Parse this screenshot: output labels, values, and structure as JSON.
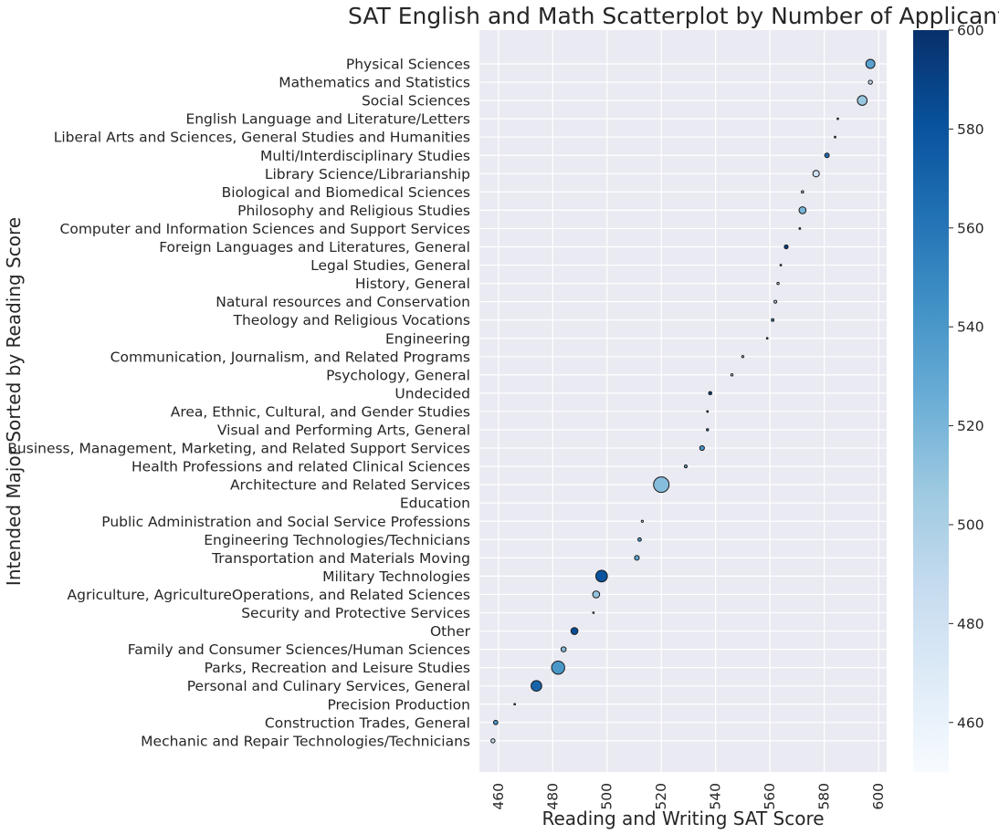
{
  "chart_data": {
    "type": "scatter",
    "title": "SAT English and Math Scatterplot by Number of Applicants",
    "xlabel": "Reading and Writing SAT Score",
    "ylabel": "Intended Major Sorted by Reading Score",
    "xlim": [
      453,
      603
    ],
    "xticks": [
      460,
      480,
      500,
      520,
      540,
      560,
      580,
      600
    ],
    "grid": true,
    "size_encodes": "number of applicants",
    "color_encodes": "math SAT score",
    "colorbar": {
      "min": 450,
      "max": 600,
      "ticks": [
        460,
        480,
        500,
        520,
        540,
        560,
        580,
        600
      ],
      "colormap": "Blues"
    },
    "points": [
      {
        "label": "Physical Sciences",
        "x": 597,
        "color_value": 533,
        "size": 1100
      },
      {
        "label": "Mathematics and Statistics",
        "x": 597,
        "color_value": 490,
        "size": 220
      },
      {
        "label": "Social Sciences",
        "x": 594,
        "color_value": 508,
        "size": 1250
      },
      {
        "label": "English Language and Literature/Letters",
        "x": 585,
        "color_value": 528,
        "size": 12
      },
      {
        "label": "Liberal Arts and Sciences, General Studies and Humanities",
        "x": 584,
        "color_value": 538,
        "size": 16
      },
      {
        "label": "Multi/Interdisciplinary Studies",
        "x": 581,
        "color_value": 565,
        "size": 280
      },
      {
        "label": "Library Science/Librarianship",
        "x": 577,
        "color_value": 480,
        "size": 560
      },
      {
        "label": "Biological and Biomedical Sciences",
        "x": 572,
        "color_value": 495,
        "size": 75
      },
      {
        "label": "Philosophy and Religious Studies",
        "x": 572,
        "color_value": 520,
        "size": 650
      },
      {
        "label": "Computer and Information Sciences and Support Services",
        "x": 571,
        "color_value": 545,
        "size": 3
      },
      {
        "label": "Foreign Languages and Literatures, General",
        "x": 566,
        "color_value": 593,
        "size": 200
      },
      {
        "label": "Legal Studies, General",
        "x": 564,
        "color_value": 548,
        "size": 30
      },
      {
        "label": "History, General",
        "x": 563,
        "color_value": 470,
        "size": 70
      },
      {
        "label": "Natural resources and Conservation",
        "x": 562,
        "color_value": 488,
        "size": 110
      },
      {
        "label": "Theology and Religious Vocations",
        "x": 561,
        "color_value": 545,
        "size": 95
      },
      {
        "label": "Engineering",
        "x": 559,
        "color_value": 565,
        "size": 30
      },
      {
        "label": "Communication, Journalism, and Related Programs",
        "x": 550,
        "color_value": 485,
        "size": 65
      },
      {
        "label": "Psychology, General",
        "x": 546,
        "color_value": 470,
        "size": 65
      },
      {
        "label": "Undecided",
        "x": 538,
        "color_value": 592,
        "size": 140
      },
      {
        "label": "Area, Ethnic, Cultural, and Gender Studies",
        "x": 537,
        "color_value": 560,
        "size": 3
      },
      {
        "label": "Visual and Performing Arts, General",
        "x": 537,
        "color_value": 552,
        "size": 65
      },
      {
        "label": "Business, Management, Marketing, and Related Support Services",
        "x": 535,
        "color_value": 542,
        "size": 300
      },
      {
        "label": "Health Professions and related Clinical Sciences",
        "x": 529,
        "color_value": 532,
        "size": 110
      },
      {
        "label": "Architecture and Related Services",
        "x": 520,
        "color_value": 515,
        "size": 3200
      },
      {
        "label": "Education",
        "x": 520,
        "color_value": 500,
        "size": 0
      },
      {
        "label": "Public Administration and Social Service Professions",
        "x": 513,
        "color_value": 470,
        "size": 55
      },
      {
        "label": "Engineering Technologies/Technicians",
        "x": 512,
        "color_value": 540,
        "size": 160
      },
      {
        "label": "Transportation and Materials Moving",
        "x": 511,
        "color_value": 530,
        "size": 300
      },
      {
        "label": "Military Technologies",
        "x": 498,
        "color_value": 580,
        "size": 1800
      },
      {
        "label": "Agriculture, AgricultureOperations, and Related Sciences",
        "x": 496,
        "color_value": 510,
        "size": 650
      },
      {
        "label": "Security and Protective Services",
        "x": 495,
        "color_value": 475,
        "size": 25
      },
      {
        "label": "Other",
        "x": 488,
        "color_value": 583,
        "size": 650
      },
      {
        "label": "Family and Consumer Sciences/Human Sciences",
        "x": 484,
        "color_value": 515,
        "size": 340
      },
      {
        "label": "Parks, Recreation and Leisure Studies",
        "x": 482,
        "color_value": 540,
        "size": 2300
      },
      {
        "label": "Personal and Culinary Services, General",
        "x": 474,
        "color_value": 570,
        "size": 1500
      },
      {
        "label": "Precision Production",
        "x": 466,
        "color_value": 538,
        "size": 25
      },
      {
        "label": "Construction Trades, General",
        "x": 459,
        "color_value": 540,
        "size": 250
      },
      {
        "label": "Mechanic and Repair Technologies/Technicians",
        "x": 458,
        "color_value": 490,
        "size": 220
      }
    ]
  }
}
